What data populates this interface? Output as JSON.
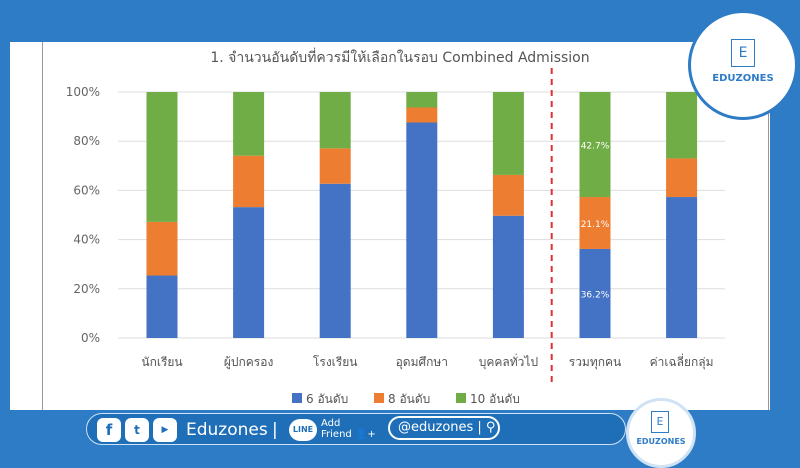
{
  "chart_data": {
    "type": "bar",
    "stacked": true,
    "percent": true,
    "title": "1. จำนวนอันดับที่ควรมีให้เลือกในรอบ Combined Admission",
    "categories": [
      "นักเรียน",
      "ผู้ปกครอง",
      "โรงเรียน",
      "อุดมศึกษา",
      "บุคคลทั่วไป",
      "รวมทุกคน",
      "ค่าเฉลี่ยกลุ่ม"
    ],
    "series": [
      {
        "name": "6 อันดับ",
        "color": "#4472c4",
        "values": [
          25.4,
          53.2,
          62.7,
          87.6,
          49.7,
          36.2,
          57.3
        ]
      },
      {
        "name": "8 อันดับ",
        "color": "#ed7d31",
        "values": [
          21.8,
          20.9,
          14.4,
          6.1,
          16.6,
          21.1,
          15.7
        ]
      },
      {
        "name": "10 อันดับ",
        "color": "#70ad47",
        "values": [
          52.8,
          25.9,
          22.9,
          6.3,
          33.7,
          42.7,
          27.0
        ]
      }
    ],
    "data_labels": {
      "category": "รวมทุกคน",
      "labels": [
        "36.2%",
        "21.1%",
        "42.7%"
      ]
    },
    "yticks": [
      "0%",
      "20%",
      "40%",
      "60%",
      "80%",
      "100%"
    ],
    "ylim": [
      0,
      100
    ],
    "grid": true,
    "legend": "bottom",
    "separator": {
      "after_category": "บุคคลทั่วไป",
      "style": "red-dashed",
      "color": "#e03030"
    }
  },
  "branding": {
    "logo_letter": "E",
    "logo_text": "EDUZONES",
    "social_name": "Eduzones",
    "separator": "|",
    "line_label": "LINE",
    "add_friend": [
      "Add",
      "Friend"
    ],
    "handle": "@eduzones",
    "social_icons": [
      "facebook-icon",
      "twitter-icon",
      "youtube-icon"
    ]
  }
}
